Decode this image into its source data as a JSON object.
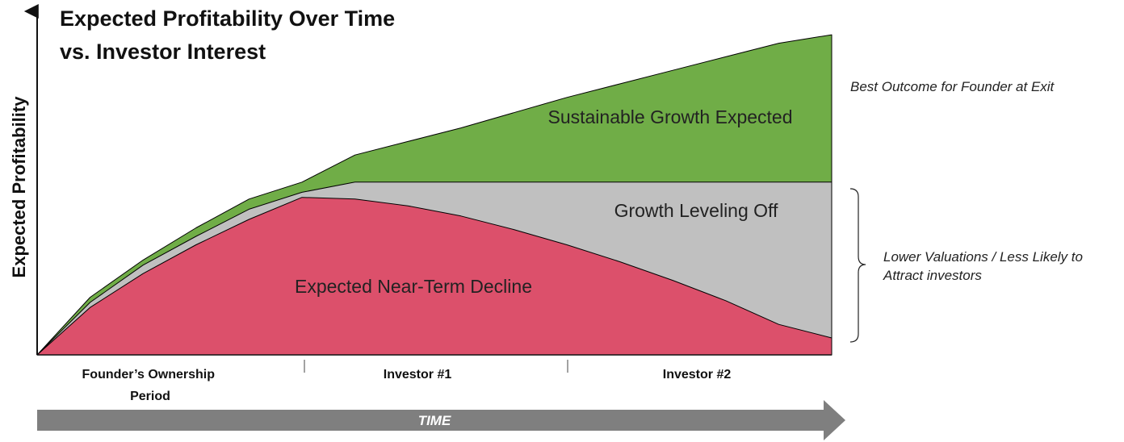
{
  "chart_data": {
    "type": "area",
    "title": "Expected Profitability Over Time vs. Investor Interest",
    "title_lines": [
      "Expected Profitability Over Time",
      "vs. Investor Interest"
    ],
    "ylabel": "Expected Profitability",
    "xlabel": "TIME",
    "x": [
      0,
      1,
      2,
      3,
      4,
      5,
      6,
      7,
      8,
      9,
      10,
      11,
      12,
      13,
      14,
      15
    ],
    "periods": [
      {
        "label_lines": [
          "Founder’s Ownership",
          "Period"
        ]
      },
      {
        "label_lines": [
          "Investor #1"
        ]
      },
      {
        "label_lines": [
          "Investor #2"
        ]
      }
    ],
    "series": [
      {
        "name": "Sustainable Growth Expected",
        "color": "#70ad47",
        "values": [
          0,
          34,
          56,
          75,
          92,
          102,
          118,
          126,
          134,
          143,
          152,
          160,
          168,
          176,
          184,
          189
        ]
      },
      {
        "name": "Growth Leveling Off",
        "color": "#c0c0c0",
        "values": [
          0,
          31,
          53,
          70,
          86,
          96,
          102,
          102,
          102,
          102,
          102,
          102,
          102,
          102,
          102,
          102
        ]
      },
      {
        "name": "Expected Near-Term Decline",
        "color": "#dc506b",
        "values": [
          0,
          28,
          48,
          65,
          80,
          93,
          92,
          88,
          82,
          74,
          65,
          55,
          44,
          32,
          18,
          10
        ]
      }
    ],
    "ylim": [
      0,
      200
    ],
    "annotations": {
      "best": "Best Outcome for Founder at Exit",
      "lower_lines": [
        "Lower Valuations / Less Likely to",
        "Attract investors"
      ]
    }
  }
}
